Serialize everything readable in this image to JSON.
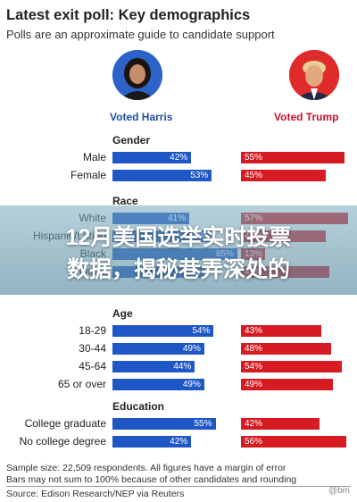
{
  "header": {
    "title": "Latest exit poll: Key demographics",
    "subtitle": "Polls are an approximate guide to candidate support"
  },
  "candidates": {
    "harris": {
      "label": "Voted Harris",
      "color": "#1f57c7"
    },
    "trump": {
      "label": "Voted Trump",
      "color": "#d61b22"
    }
  },
  "overlay": {
    "line1": "12月美国选举实时投票",
    "line2": "数据，揭秘巷弄深处的"
  },
  "chart_data": {
    "type": "bar",
    "title": "Latest exit poll: Key demographics",
    "value_unit": "%",
    "groups": [
      {
        "name": "Gender",
        "rows": [
          {
            "label": "Male",
            "harris": 42,
            "trump": 55
          },
          {
            "label": "Female",
            "harris": 53,
            "trump": 45
          }
        ]
      },
      {
        "name": "Race",
        "rows": [
          {
            "label": "White",
            "harris": 41,
            "trump": 57
          },
          {
            "label": "Hispanic/Latino",
            "harris": 53,
            "trump": 45
          },
          {
            "label": "Black",
            "harris": 85,
            "trump": 13
          },
          {
            "label": "Other",
            "harris": 49,
            "trump": 47
          }
        ]
      },
      {
        "name": "Age",
        "rows": [
          {
            "label": "18-29",
            "harris": 54,
            "trump": 43
          },
          {
            "label": "30-44",
            "harris": 49,
            "trump": 48
          },
          {
            "label": "45-64",
            "harris": 44,
            "trump": 54
          },
          {
            "label": "65 or over",
            "harris": 49,
            "trump": 49
          }
        ]
      },
      {
        "name": "Education",
        "rows": [
          {
            "label": "College graduate",
            "harris": 55,
            "trump": 42
          },
          {
            "label": "No college degree",
            "harris": 42,
            "trump": 56
          }
        ]
      }
    ]
  },
  "footer": {
    "note1": "Sample size: 22,509 respondents. All figures have a margin of error",
    "note2": "Bars may not sum to 100% because of other candidates and rounding",
    "source": "Source: Edison Research/NEP via Reuters",
    "watermark": "@bm"
  }
}
